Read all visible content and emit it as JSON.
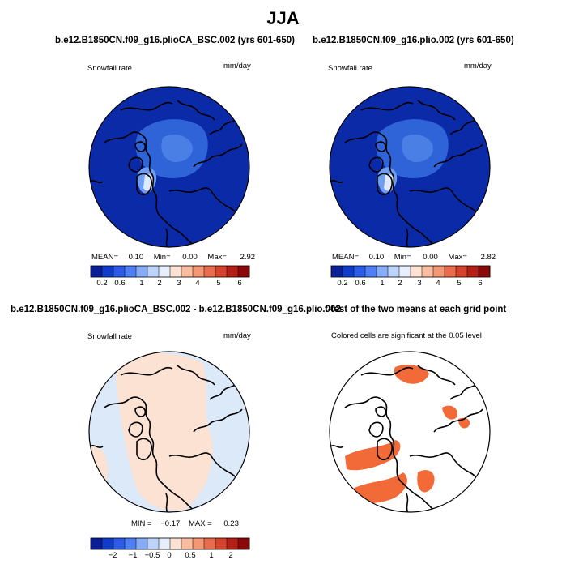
{
  "figure": {
    "title": "JJA"
  },
  "panels": [
    {
      "id": "top-left",
      "title": "b.e12.B1850CN.f09_g16.plioCA_BSC.002 (yrs 601-650)",
      "variable": "Snowfall rate",
      "units": "mm/day",
      "stats": {
        "mean_label": "MEAN=",
        "mean": "0.10",
        "min_label": "Min=",
        "min": "0.00",
        "max_label": "Max=",
        "max": "2.92"
      }
    },
    {
      "id": "top-right",
      "title": "b.e12.B1850CN.f09_g16.plio.002 (yrs 601-650)",
      "variable": "Snowfall rate",
      "units": "mm/day",
      "stats": {
        "mean_label": "MEAN=",
        "mean": "0.10",
        "min_label": "Min=",
        "min": "0.00",
        "max_label": "Max=",
        "max": "2.82"
      }
    },
    {
      "id": "bottom-left",
      "title": "b.e12.B1850CN.f09_g16.plioCA_BSC.002 - b.e12.B1850CN.f09_g16.plio.002",
      "variable": "Snowfall rate",
      "units": "mm/day",
      "stats": {
        "min_label": "MIN =",
        "min": "−0.17",
        "max_label": "MAX =",
        "max": "0.23"
      }
    },
    {
      "id": "bottom-right",
      "title": "t-test of the two means at each grid point",
      "subtitle": "Colored cells are significant at the 0.05 level"
    }
  ],
  "colorbars": {
    "snowfall": {
      "colors": [
        "#0a1e96",
        "#0f3cc8",
        "#2a5ce8",
        "#4f7ff5",
        "#86abf7",
        "#bcd3fa",
        "#e6eefb",
        "#fbe2d2",
        "#f9bea0",
        "#f49775",
        "#e96c4c",
        "#d4432c",
        "#b41f16",
        "#8a0808"
      ],
      "tick_labels": [
        "0.2",
        "0.6",
        "1",
        "2",
        "3",
        "4",
        "5",
        "6"
      ]
    },
    "difference": {
      "colors": [
        "#0a1e96",
        "#0f3cc8",
        "#2a5ce8",
        "#4f7ff5",
        "#86abf7",
        "#bcd3fa",
        "#e6eefb",
        "#fbe2d2",
        "#f9bea0",
        "#f49775",
        "#e96c4c",
        "#d4432c",
        "#b41f16",
        "#8a0808"
      ],
      "tick_labels": [
        "−2",
        "−1",
        "−0.5",
        "0",
        "0.5",
        "1",
        "2"
      ]
    }
  },
  "chart_data": [
    {
      "type": "heatmap",
      "projection": "north polar stereographic",
      "title": "b.e12.B1850CN.f09_g16.plioCA_BSC.002 (yrs 601-650)",
      "variable": "Snowfall rate",
      "units": "mm/day",
      "mean": 0.1,
      "min": 0.0,
      "max": 2.92,
      "colorbar_levels": [
        0.2,
        0.6,
        1,
        2,
        3,
        4,
        5,
        6
      ],
      "field_colors": {
        "background": "#0b2aa8",
        "central_arctic": "#2f63d8",
        "pole_core": "#4a7fe6",
        "greenland_max": "#dfe9ff"
      }
    },
    {
      "type": "heatmap",
      "projection": "north polar stereographic",
      "title": "b.e12.B1850CN.f09_g16.plio.002 (yrs 601-650)",
      "variable": "Snowfall rate",
      "units": "mm/day",
      "mean": 0.1,
      "min": 0.0,
      "max": 2.82,
      "colorbar_levels": [
        0.2,
        0.6,
        1,
        2,
        3,
        4,
        5,
        6
      ],
      "field_colors": {
        "background": "#0b2aa8",
        "central_arctic": "#2f63d8",
        "pole_core": "#4a7fe6",
        "greenland_max": "#dfe9ff"
      }
    },
    {
      "type": "heatmap",
      "projection": "north polar stereographic",
      "title": "b.e12.B1850CN.f09_g16.plioCA_BSC.002 - b.e12.B1850CN.f09_g16.plio.002",
      "variable": "Snowfall rate",
      "units": "mm/day",
      "min": -0.17,
      "max": 0.23,
      "colorbar_levels": [
        -2,
        -1,
        -0.5,
        0,
        0.5,
        1,
        2
      ],
      "field_colors": {
        "positive_small": "#fbe2d2",
        "negative_small": "#dce9f9"
      }
    },
    {
      "type": "heatmap",
      "projection": "north polar stereographic",
      "title": "t-test of the two means at each grid point",
      "subtitle": "Colored cells are significant at the 0.05 level",
      "field_colors": {
        "significant": "#f26a38",
        "not_significant": "#ffffff"
      }
    }
  ]
}
